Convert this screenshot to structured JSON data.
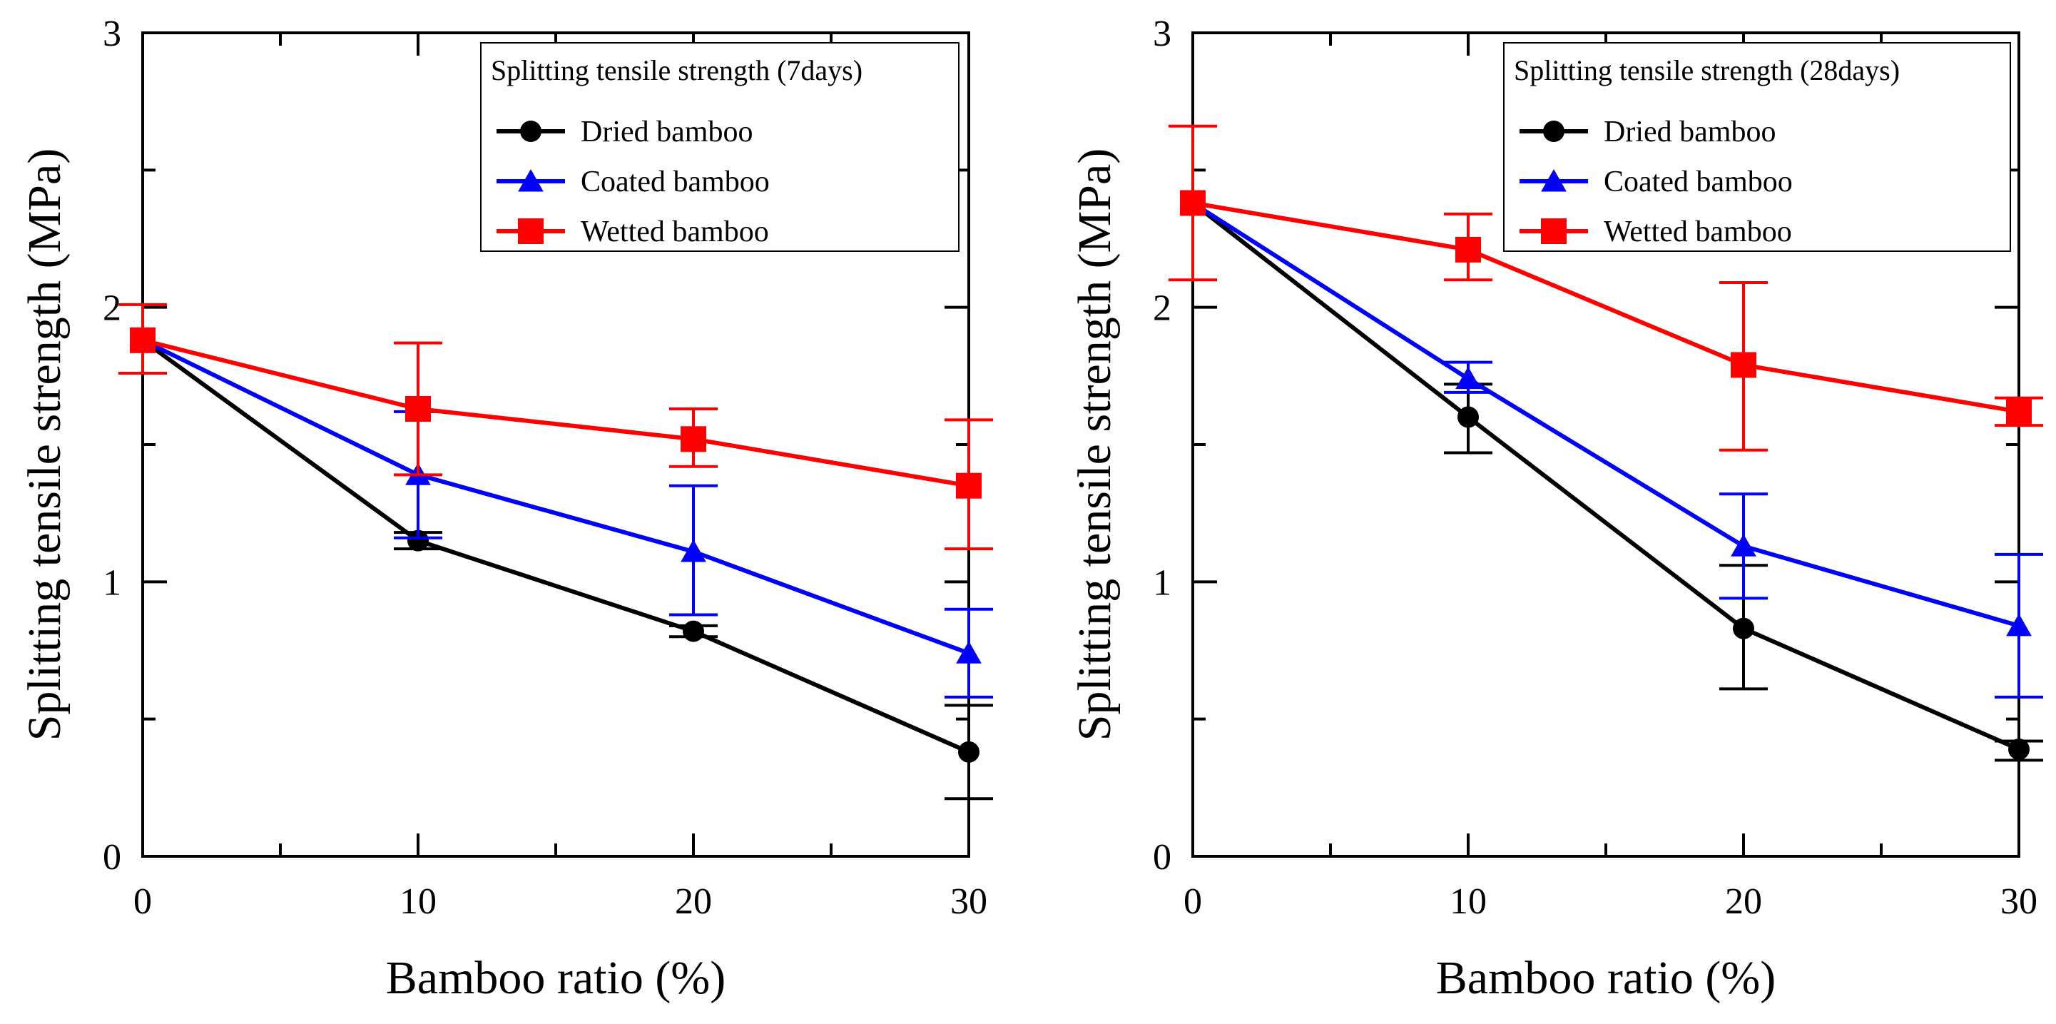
{
  "chart_data": [
    {
      "type": "line",
      "title": "",
      "xlabel": "Bamboo ratio (%)",
      "ylabel": "Splitting tensile strength (MPa)",
      "xlim": [
        0,
        30
      ],
      "ylim": [
        0,
        3
      ],
      "xticks": [
        0,
        10,
        20,
        30
      ],
      "xtick_labels": [
        "0",
        "10",
        "20",
        "30"
      ],
      "yticks": [
        0,
        1,
        2,
        3
      ],
      "ytick_labels": [
        "0",
        "1",
        "2",
        "3"
      ],
      "legend_title": "Splitting tensile strength (7days)",
      "legend_position": "top-right",
      "grid": false,
      "x": [
        0,
        10,
        20,
        30
      ],
      "series": [
        {
          "name": "Dried bamboo",
          "color": "#000000",
          "marker": "circle",
          "values": [
            1.88,
            1.15,
            0.82,
            0.38
          ],
          "err_high": [
            1.88,
            1.18,
            0.84,
            0.55
          ],
          "err_low": [
            1.88,
            1.12,
            0.8,
            0.21
          ]
        },
        {
          "name": "Coated bamboo",
          "color": "#0000ff",
          "marker": "triangle",
          "values": [
            1.88,
            1.39,
            1.11,
            0.74
          ],
          "err_high": [
            1.88,
            1.62,
            1.35,
            0.9
          ],
          "err_low": [
            1.88,
            1.16,
            0.88,
            0.58
          ]
        },
        {
          "name": "Wetted bamboo",
          "color": "#ff0000",
          "marker": "square",
          "values": [
            1.88,
            1.63,
            1.52,
            1.35
          ],
          "err_high": [
            2.01,
            1.87,
            1.63,
            1.59
          ],
          "err_low": [
            1.76,
            1.39,
            1.42,
            1.12
          ]
        }
      ]
    },
    {
      "type": "line",
      "title": "",
      "xlabel": "Bamboo ratio (%)",
      "ylabel": "Splitting tensile strength (MPa)",
      "xlim": [
        0,
        30
      ],
      "ylim": [
        0,
        3
      ],
      "xticks": [
        0,
        10,
        20,
        30
      ],
      "xtick_labels": [
        "0",
        "10",
        "20",
        "30"
      ],
      "yticks": [
        0,
        1,
        2,
        3
      ],
      "ytick_labels": [
        "0",
        "1",
        "2",
        "3"
      ],
      "legend_title": "Splitting tensile strength (28days)",
      "legend_position": "top-right",
      "grid": false,
      "x": [
        0,
        10,
        20,
        30
      ],
      "series": [
        {
          "name": "Dried bamboo",
          "color": "#000000",
          "marker": "circle",
          "values": [
            2.38,
            1.6,
            0.83,
            0.39
          ],
          "err_high": [
            2.38,
            1.72,
            1.06,
            0.42
          ],
          "err_low": [
            2.38,
            1.47,
            0.61,
            0.35
          ]
        },
        {
          "name": "Coated bamboo",
          "color": "#0000ff",
          "marker": "triangle",
          "values": [
            2.38,
            1.74,
            1.13,
            0.84
          ],
          "err_high": [
            2.38,
            1.8,
            1.32,
            1.1
          ],
          "err_low": [
            2.38,
            1.69,
            0.94,
            0.58
          ]
        },
        {
          "name": "Wetted bamboo",
          "color": "#ff0000",
          "marker": "square",
          "values": [
            2.38,
            2.21,
            1.79,
            1.62
          ],
          "err_high": [
            2.66,
            2.34,
            2.09,
            1.67
          ],
          "err_low": [
            2.1,
            2.1,
            1.48,
            1.57
          ]
        }
      ]
    }
  ]
}
